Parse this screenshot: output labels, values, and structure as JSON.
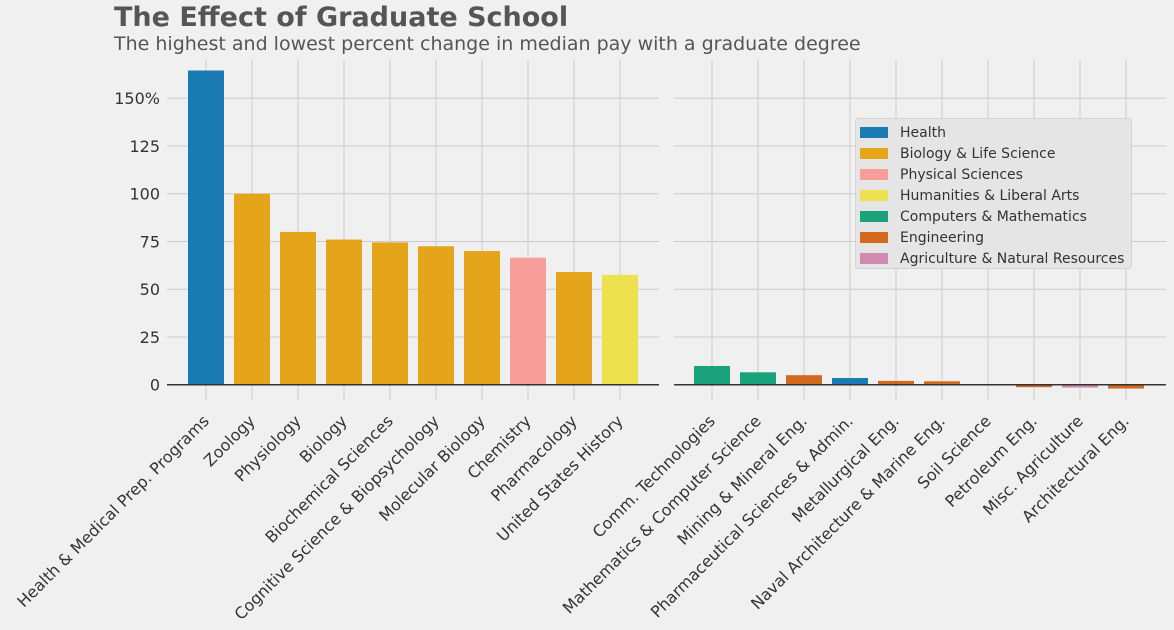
{
  "chart_data": {
    "type": "bar",
    "title": "The Effect of Graduate School",
    "subtitle": "The highest and lowest percent change in median pay with a graduate degree",
    "ylim": [
      -8,
      170
    ],
    "yticks": [
      {
        "value": 0,
        "label": "0"
      },
      {
        "value": 25,
        "label": "25"
      },
      {
        "value": 50,
        "label": "50"
      },
      {
        "value": 75,
        "label": "75"
      },
      {
        "value": 100,
        "label": "100"
      },
      {
        "value": 125,
        "label": "125"
      },
      {
        "value": 150,
        "label": "150%"
      }
    ],
    "grid": true,
    "legend_position": "upper-right",
    "colors": {
      "Health": "#1a7ab4",
      "Biology & Life Science": "#e5a51a",
      "Physical Sciences": "#f99d9b",
      "Humanities & Liberal Arts": "#eee14f",
      "Computers & Mathematics": "#1aa27d",
      "Engineering": "#d2691e",
      "Agriculture & Natural Resources": "#d38ab0"
    },
    "legend": [
      "Health",
      "Biology & Life Science",
      "Physical Sciences",
      "Humanities & Liberal Arts",
      "Computers & Mathematics",
      "Engineering",
      "Agriculture & Natural Resources"
    ],
    "panels": [
      {
        "bars": [
          {
            "category": "Health & Medical Prep. Programs",
            "value": 164.5,
            "group": "Health"
          },
          {
            "category": "Zoology",
            "value": 100,
            "group": "Biology & Life Science"
          },
          {
            "category": "Physiology",
            "value": 80,
            "group": "Biology & Life Science"
          },
          {
            "category": "Biology",
            "value": 76,
            "group": "Biology & Life Science"
          },
          {
            "category": "Biochemical Sciences",
            "value": 74.5,
            "group": "Biology & Life Science"
          },
          {
            "category": "Cognitive Science & Biopsychology",
            "value": 72.5,
            "group": "Biology & Life Science"
          },
          {
            "category": "Molecular Biology",
            "value": 70,
            "group": "Biology & Life Science"
          },
          {
            "category": "Chemistry",
            "value": 66.5,
            "group": "Physical Sciences"
          },
          {
            "category": "Pharmacology",
            "value": 59,
            "group": "Biology & Life Science"
          },
          {
            "category": "United States History",
            "value": 57.5,
            "group": "Humanities & Liberal Arts"
          }
        ]
      },
      {
        "bars": [
          {
            "category": "Comm. Technologies",
            "value": 9.8,
            "group": "Computers & Mathematics"
          },
          {
            "category": "Mathematics & Computer Science",
            "value": 6.5,
            "group": "Computers & Mathematics"
          },
          {
            "category": "Mining & Mineral Eng.",
            "value": 5,
            "group": "Engineering"
          },
          {
            "category": "Pharmaceutical Sciences & Admin.",
            "value": 3.5,
            "group": "Health"
          },
          {
            "category": "Metallurgical Eng.",
            "value": 2,
            "group": "Engineering"
          },
          {
            "category": "Naval Architecture & Marine Eng.",
            "value": 1.8,
            "group": "Engineering"
          },
          {
            "category": "Soil Science",
            "value": 0,
            "group": "Agriculture & Natural Resources"
          },
          {
            "category": "Petroleum Eng.",
            "value": -1.3,
            "group": "Engineering"
          },
          {
            "category": "Misc. Agriculture",
            "value": -1.5,
            "group": "Agriculture & Natural Resources"
          },
          {
            "category": "Architectural Eng.",
            "value": -2,
            "group": "Engineering"
          }
        ]
      }
    ]
  }
}
